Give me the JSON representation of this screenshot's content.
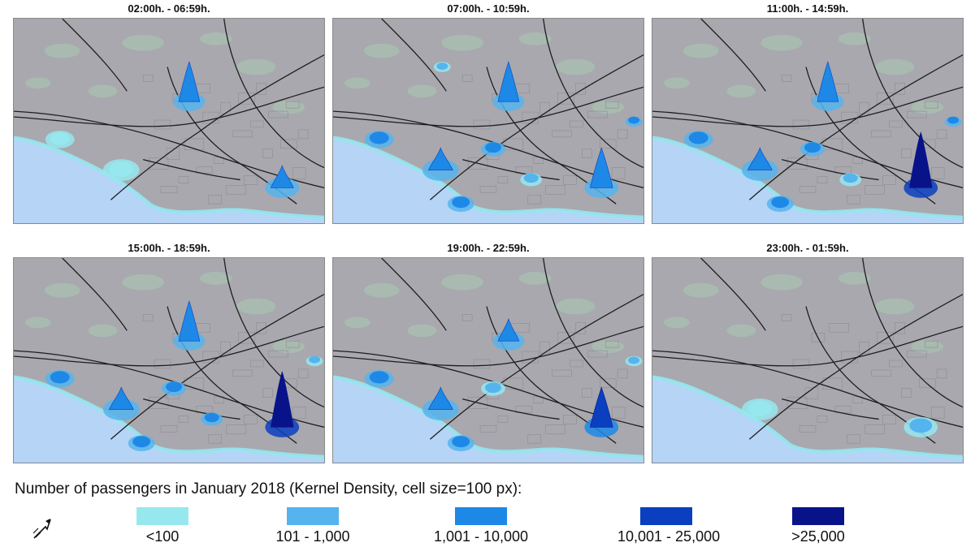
{
  "panels": [
    {
      "title": "02:00h. - 06:59h.",
      "hotspots": [
        {
          "site": "north",
          "cls": 2,
          "peak": 3
        },
        {
          "site": "west",
          "cls": 0,
          "peak": 0
        },
        {
          "site": "port",
          "cls": 2,
          "peak": 2
        },
        {
          "site": "coastA",
          "cls": 0,
          "peak": 0
        }
      ]
    },
    {
      "title": "07:00h. - 10:59h.",
      "hotspots": [
        {
          "site": "north",
          "cls": 2,
          "peak": 3
        },
        {
          "site": "west",
          "cls": 2,
          "peak": 1
        },
        {
          "site": "coastA",
          "cls": 2,
          "peak": 2
        },
        {
          "site": "coastB",
          "cls": 2,
          "peak": 1
        },
        {
          "site": "center",
          "cls": 2,
          "peak": 1
        },
        {
          "site": "mid",
          "cls": 1,
          "peak": 1
        },
        {
          "site": "port",
          "cls": 2,
          "peak": 3
        },
        {
          "site": "east",
          "cls": 2,
          "peak": 1
        },
        {
          "site": "nw",
          "cls": 1,
          "peak": 0
        }
      ]
    },
    {
      "title": "11:00h. - 14:59h.",
      "hotspots": [
        {
          "site": "north",
          "cls": 2,
          "peak": 3
        },
        {
          "site": "west",
          "cls": 2,
          "peak": 1
        },
        {
          "site": "coastA",
          "cls": 2,
          "peak": 2
        },
        {
          "site": "coastB",
          "cls": 2,
          "peak": 1
        },
        {
          "site": "center",
          "cls": 2,
          "peak": 1
        },
        {
          "site": "mid",
          "cls": 1,
          "peak": 1
        },
        {
          "site": "port",
          "cls": 4,
          "peak": 4
        },
        {
          "site": "east",
          "cls": 2,
          "peak": 1
        }
      ]
    },
    {
      "title": "15:00h. - 18:59h.",
      "hotspots": [
        {
          "site": "north",
          "cls": 2,
          "peak": 3
        },
        {
          "site": "west",
          "cls": 2,
          "peak": 1
        },
        {
          "site": "coastA",
          "cls": 2,
          "peak": 2
        },
        {
          "site": "coastB",
          "cls": 2,
          "peak": 1
        },
        {
          "site": "center",
          "cls": 2,
          "peak": 1
        },
        {
          "site": "mid",
          "cls": 2,
          "peak": 1
        },
        {
          "site": "port",
          "cls": 4,
          "peak": 4
        },
        {
          "site": "east",
          "cls": 1,
          "peak": 1
        }
      ]
    },
    {
      "title": "19:00h. - 22:59h.",
      "hotspots": [
        {
          "site": "north",
          "cls": 2,
          "peak": 2
        },
        {
          "site": "west",
          "cls": 2,
          "peak": 1
        },
        {
          "site": "coastA",
          "cls": 2,
          "peak": 2
        },
        {
          "site": "coastB",
          "cls": 2,
          "peak": 1
        },
        {
          "site": "center",
          "cls": 1,
          "peak": 0
        },
        {
          "site": "port",
          "cls": 3,
          "peak": 3
        },
        {
          "site": "east",
          "cls": 1,
          "peak": 0
        }
      ]
    },
    {
      "title": "23:00h. - 01:59h.",
      "hotspots": [
        {
          "site": "port",
          "cls": 1,
          "peak": 1
        },
        {
          "site": "coastA",
          "cls": 0,
          "peak": 0
        }
      ]
    }
  ],
  "legend": {
    "title": "Number of passengers in January 2018 (Kernel Density, cell size=100 px):",
    "items": [
      {
        "label": "<100",
        "color": "#96e8ee"
      },
      {
        "label": "101 - 1,000",
        "color": "#55b4ee"
      },
      {
        "label": "1,001 - 10,000",
        "color": "#1e88e6"
      },
      {
        "label": "10,001 - 25,000",
        "color": "#0a3fc0"
      },
      {
        "label": ">25,000",
        "color": "#08138a"
      }
    ]
  },
  "colors": {
    "land": "#a8a8ae",
    "sea": "#b6d4f6",
    "coast": "#97e6ef",
    "roads": "#1e1e1e",
    "parcels": "#8c8c92",
    "green": "#a9c2b0"
  }
}
